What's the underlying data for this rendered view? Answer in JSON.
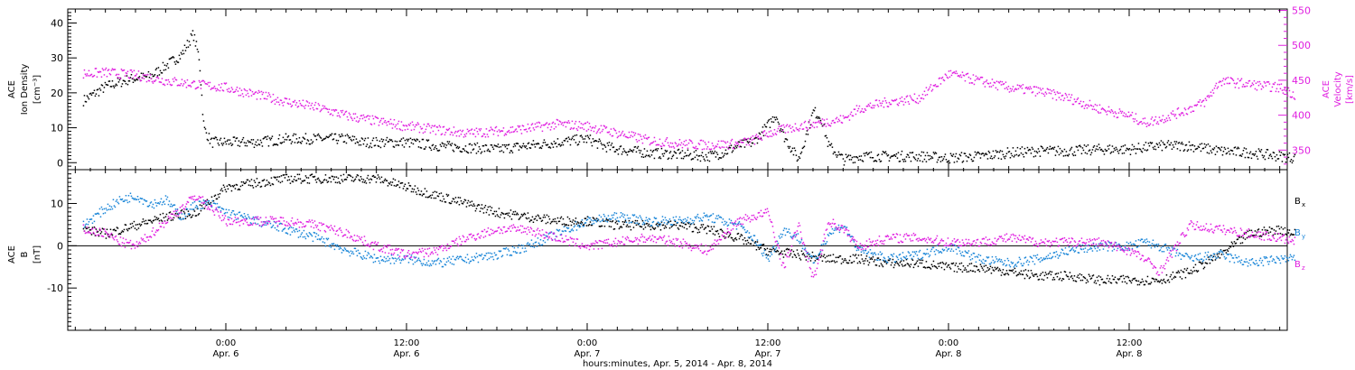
{
  "colors": {
    "black": "#000000",
    "magenta": "#e020e0",
    "blue": "#1a86d8"
  },
  "chart_data": [
    {
      "type": "scatter",
      "panel": "top",
      "ylabel_left": [
        "ACE",
        "Ion Density",
        "[cm⁻³]"
      ],
      "ylabel_right": [
        "ACE",
        "Velocity",
        "[km/s]"
      ],
      "ylim_left": [
        -2,
        44
      ],
      "ylim_right": [
        322,
        552
      ],
      "left_ticks": [
        0,
        10,
        20,
        30,
        40
      ],
      "right_ticks": [
        350,
        400,
        450,
        500,
        550
      ],
      "series": [
        {
          "axis": "left",
          "color": "black",
          "x_hours": [
            -9.5,
            -8,
            -6.5,
            -5,
            -4,
            -3,
            -2.2,
            -1.8,
            -1.5,
            -1,
            0,
            2,
            4,
            6,
            8,
            9,
            10,
            12,
            14,
            16,
            18,
            20,
            22,
            24,
            25,
            26,
            28,
            30,
            32,
            33,
            34,
            35,
            36,
            36.5,
            37,
            38,
            38.5,
            39,
            39.5,
            40,
            41,
            42,
            44,
            46,
            48,
            50,
            52,
            54,
            56,
            58,
            60,
            62,
            64,
            66,
            68,
            70,
            71
          ],
          "values": [
            18,
            22,
            24,
            25,
            28,
            31,
            37,
            30,
            10,
            6,
            6,
            6,
            7,
            7,
            7,
            6,
            6,
            6,
            5,
            4.5,
            4,
            5,
            6,
            7,
            5,
            4,
            3,
            2.5,
            2,
            3,
            5,
            6,
            11,
            14,
            8,
            1,
            8,
            15,
            13,
            5,
            1,
            2,
            2,
            2,
            1.5,
            2,
            3,
            3.5,
            3.5,
            4,
            4,
            5,
            5,
            3.5,
            3,
            2,
            1.5
          ]
        },
        {
          "axis": "right",
          "color": "magenta",
          "x_hours": [
            -9.5,
            -8,
            -6,
            -4,
            -2,
            0,
            2,
            4,
            6,
            8,
            10,
            12,
            14,
            16,
            18,
            20,
            22,
            24,
            26,
            28,
            30,
            32,
            34,
            35,
            36,
            38,
            39,
            40,
            41,
            42,
            44,
            46,
            48,
            50,
            52,
            54,
            56,
            58,
            60,
            61,
            62,
            64,
            65,
            66,
            68,
            70,
            71
          ],
          "values": [
            460,
            462,
            458,
            450,
            445,
            440,
            430,
            420,
            412,
            400,
            392,
            385,
            380,
            375,
            378,
            382,
            388,
            385,
            375,
            365,
            360,
            358,
            360,
            365,
            375,
            385,
            388,
            392,
            395,
            410,
            420,
            425,
            460,
            450,
            440,
            435,
            425,
            410,
            400,
            390,
            395,
            410,
            420,
            450,
            445,
            440,
            430
          ]
        }
      ]
    },
    {
      "type": "scatter",
      "panel": "bottom",
      "ylabel": [
        "ACE",
        "B",
        "[nT]"
      ],
      "ylim": [
        -20,
        18
      ],
      "yticks": [
        -10,
        0,
        10
      ],
      "x_ticks_hours": [
        0,
        12,
        24,
        36,
        48,
        60
      ],
      "x_tick_labels": [
        [
          "0:00",
          "Apr. 6"
        ],
        [
          "12:00",
          "Apr. 6"
        ],
        [
          "0:00",
          "Apr. 7"
        ],
        [
          "12:00",
          "Apr. 7"
        ],
        [
          "0:00",
          "Apr. 8"
        ],
        [
          "12:00",
          "Apr. 8"
        ]
      ],
      "xlabel": "hours:minutes, Apr.  5, 2014 - Apr.  8, 2014",
      "xlim_hours": [
        -10.5,
        70.5
      ],
      "series": [
        {
          "name_base": "B",
          "name_sub": "x",
          "color": "black",
          "x_hours": [
            -9.5,
            -8,
            -6,
            -4,
            -2,
            -1,
            0,
            2,
            4,
            6,
            8,
            9,
            10,
            12,
            14,
            16,
            18,
            20,
            22,
            24,
            26,
            28,
            30,
            32,
            34,
            36,
            38,
            40,
            42,
            44,
            46,
            48,
            50,
            52,
            54,
            56,
            58,
            60,
            62,
            64,
            66,
            68,
            70,
            71
          ],
          "values": [
            4,
            3,
            5,
            7,
            8,
            11,
            14,
            15,
            16,
            16,
            16,
            16,
            16,
            14,
            12,
            10,
            8,
            7,
            6,
            6,
            5,
            5,
            5,
            4,
            2,
            -1,
            -2,
            -3,
            -3,
            -4,
            -4,
            -5,
            -5,
            -6,
            -7,
            -7,
            -8,
            -8,
            -8,
            -6,
            -2,
            3,
            4,
            3
          ]
        },
        {
          "name_base": "B",
          "name_sub": "y",
          "color": "blue",
          "x_hours": [
            -9.5,
            -8,
            -7,
            -6,
            -5,
            -4,
            -3,
            -2,
            -1,
            0,
            2,
            4,
            6,
            8,
            10,
            12,
            14,
            16,
            18,
            20,
            22,
            24,
            26,
            28,
            30,
            32,
            34,
            35,
            36,
            37,
            38,
            39,
            40,
            41,
            42,
            44,
            46,
            48,
            50,
            52,
            54,
            56,
            58,
            60,
            61,
            62,
            64,
            66,
            68,
            70,
            71
          ],
          "values": [
            5,
            9,
            11,
            12,
            10,
            11,
            7,
            10,
            10,
            8,
            6,
            4,
            2,
            -1,
            -3,
            -3,
            -4,
            -3,
            -2,
            0,
            3,
            6,
            7,
            6,
            6,
            7,
            5,
            2,
            -3,
            4,
            2,
            -4,
            3,
            5,
            -1,
            -3,
            -2,
            0,
            -3,
            -4,
            -3,
            -1,
            0,
            0,
            1,
            0,
            -3,
            -2,
            -4,
            -3,
            -3
          ]
        },
        {
          "name_base": "B",
          "name_sub": "z",
          "color": "magenta",
          "x_hours": [
            -9.5,
            -8,
            -7,
            -6,
            -5,
            -4,
            -3,
            -2,
            -1,
            0,
            2,
            4,
            6,
            8,
            10,
            12,
            14,
            16,
            18,
            20,
            22,
            24,
            26,
            28,
            30,
            32,
            34,
            35,
            36,
            37,
            38,
            39,
            40,
            41,
            42,
            44,
            46,
            48,
            50,
            52,
            54,
            56,
            58,
            60,
            61,
            62,
            64,
            66,
            68,
            70,
            71
          ],
          "values": [
            4,
            3,
            1,
            0,
            3,
            6,
            9,
            12,
            9,
            6,
            6,
            6,
            5,
            3,
            0,
            -2,
            -1,
            2,
            4,
            4,
            2,
            0,
            1,
            2,
            1,
            -1,
            6,
            7,
            8,
            -5,
            5,
            -8,
            6,
            4,
            0,
            2,
            2,
            1,
            1,
            2,
            1,
            1,
            1,
            -1,
            -3,
            -6,
            5,
            4,
            3,
            2,
            1
          ]
        }
      ]
    }
  ]
}
